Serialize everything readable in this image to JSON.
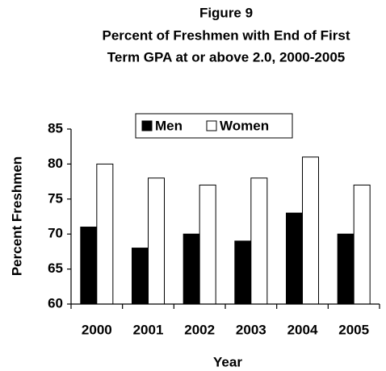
{
  "chart_data": {
    "type": "bar",
    "title": [
      "Figure 9",
      "Percent of Freshmen with End of First",
      "Term GPA at or above 2.0, 2000-2005"
    ],
    "x_label": "Year",
    "y_label": "Percent Freshmen",
    "categories": [
      "2000",
      "2001",
      "2002",
      "2003",
      "2004",
      "2005"
    ],
    "series": [
      {
        "name": "Men",
        "color": "#000000",
        "values": [
          71,
          68,
          70,
          69,
          73,
          70
        ]
      },
      {
        "name": "Women",
        "color": "#ffffff",
        "values": [
          80,
          78,
          77,
          78,
          81,
          77
        ]
      }
    ],
    "ylim": [
      60,
      85
    ],
    "yticks": [
      60,
      65,
      70,
      75,
      80,
      85
    ],
    "grid": false,
    "legend": "top"
  }
}
